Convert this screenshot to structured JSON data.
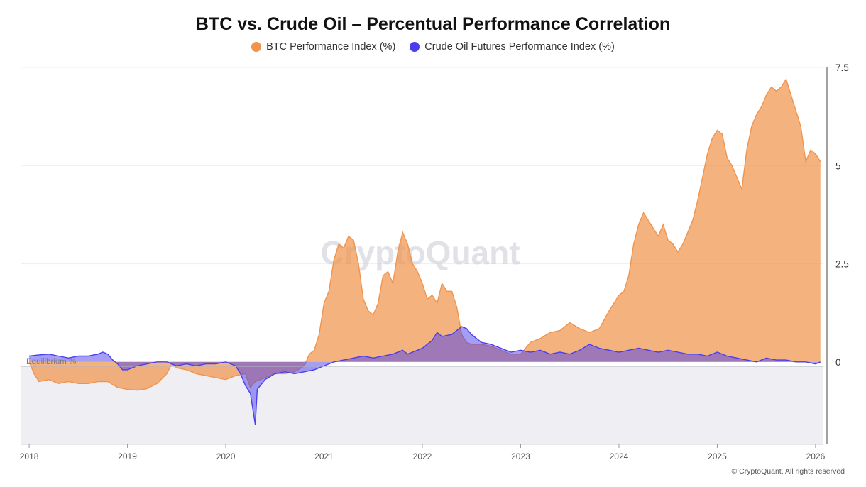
{
  "chart_data": {
    "type": "area",
    "title": "BTC vs. Crude Oil – Percentual Performance Correlation",
    "series": [
      {
        "name": "BTC Performance Index (%)",
        "color": "#f0944d",
        "points": [
          [
            2018.0,
            0
          ],
          [
            2018.05,
            -0.3
          ],
          [
            2018.1,
            -0.5
          ],
          [
            2018.2,
            -0.45
          ],
          [
            2018.3,
            -0.55
          ],
          [
            2018.4,
            -0.5
          ],
          [
            2018.5,
            -0.55
          ],
          [
            2018.6,
            -0.55
          ],
          [
            2018.7,
            -0.5
          ],
          [
            2018.8,
            -0.5
          ],
          [
            2018.9,
            -0.65
          ],
          [
            2019.0,
            -0.7
          ],
          [
            2019.1,
            -0.72
          ],
          [
            2019.2,
            -0.68
          ],
          [
            2019.3,
            -0.55
          ],
          [
            2019.4,
            -0.3
          ],
          [
            2019.45,
            -0.05
          ],
          [
            2019.5,
            -0.15
          ],
          [
            2019.6,
            -0.2
          ],
          [
            2019.7,
            -0.3
          ],
          [
            2019.8,
            -0.35
          ],
          [
            2019.9,
            -0.4
          ],
          [
            2020.0,
            -0.45
          ],
          [
            2020.1,
            -0.35
          ],
          [
            2020.2,
            -0.3
          ],
          [
            2020.25,
            -0.65
          ],
          [
            2020.3,
            -0.5
          ],
          [
            2020.4,
            -0.4
          ],
          [
            2020.5,
            -0.3
          ],
          [
            2020.6,
            -0.3
          ],
          [
            2020.7,
            -0.25
          ],
          [
            2020.8,
            -0.1
          ],
          [
            2020.85,
            0.2
          ],
          [
            2020.9,
            0.3
          ],
          [
            2020.95,
            0.7
          ],
          [
            2021.0,
            1.5
          ],
          [
            2021.05,
            1.8
          ],
          [
            2021.1,
            2.6
          ],
          [
            2021.15,
            3.0
          ],
          [
            2021.2,
            2.9
          ],
          [
            2021.25,
            3.2
          ],
          [
            2021.3,
            3.1
          ],
          [
            2021.35,
            2.5
          ],
          [
            2021.4,
            1.6
          ],
          [
            2021.45,
            1.3
          ],
          [
            2021.5,
            1.2
          ],
          [
            2021.55,
            1.5
          ],
          [
            2021.6,
            2.2
          ],
          [
            2021.65,
            2.3
          ],
          [
            2021.7,
            2.0
          ],
          [
            2021.75,
            2.8
          ],
          [
            2021.8,
            3.3
          ],
          [
            2021.85,
            3.0
          ],
          [
            2021.9,
            2.5
          ],
          [
            2021.95,
            2.3
          ],
          [
            2022.0,
            2.0
          ],
          [
            2022.05,
            1.6
          ],
          [
            2022.1,
            1.7
          ],
          [
            2022.15,
            1.5
          ],
          [
            2022.2,
            2.0
          ],
          [
            2022.25,
            1.8
          ],
          [
            2022.3,
            1.8
          ],
          [
            2022.35,
            1.4
          ],
          [
            2022.4,
            0.7
          ],
          [
            2022.45,
            0.5
          ],
          [
            2022.5,
            0.45
          ],
          [
            2022.6,
            0.45
          ],
          [
            2022.7,
            0.4
          ],
          [
            2022.8,
            0.3
          ],
          [
            2022.9,
            0.2
          ],
          [
            2023.0,
            0.2
          ],
          [
            2023.1,
            0.5
          ],
          [
            2023.2,
            0.6
          ],
          [
            2023.3,
            0.75
          ],
          [
            2023.4,
            0.8
          ],
          [
            2023.5,
            1.0
          ],
          [
            2023.6,
            0.85
          ],
          [
            2023.7,
            0.75
          ],
          [
            2023.8,
            0.85
          ],
          [
            2023.9,
            1.3
          ],
          [
            2024.0,
            1.7
          ],
          [
            2024.05,
            1.8
          ],
          [
            2024.1,
            2.2
          ],
          [
            2024.15,
            3.0
          ],
          [
            2024.2,
            3.5
          ],
          [
            2024.25,
            3.8
          ],
          [
            2024.3,
            3.6
          ],
          [
            2024.35,
            3.4
          ],
          [
            2024.4,
            3.2
          ],
          [
            2024.45,
            3.5
          ],
          [
            2024.5,
            3.1
          ],
          [
            2024.55,
            3.0
          ],
          [
            2024.6,
            2.8
          ],
          [
            2024.65,
            3.0
          ],
          [
            2024.7,
            3.3
          ],
          [
            2024.75,
            3.6
          ],
          [
            2024.8,
            4.1
          ],
          [
            2024.85,
            4.7
          ],
          [
            2024.9,
            5.3
          ],
          [
            2024.95,
            5.7
          ],
          [
            2025.0,
            5.9
          ],
          [
            2025.05,
            5.8
          ],
          [
            2025.1,
            5.2
          ],
          [
            2025.15,
            5.0
          ],
          [
            2025.2,
            4.7
          ],
          [
            2025.25,
            4.4
          ],
          [
            2025.3,
            5.4
          ],
          [
            2025.35,
            6.0
          ],
          [
            2025.4,
            6.3
          ],
          [
            2025.45,
            6.5
          ],
          [
            2025.5,
            6.8
          ],
          [
            2025.55,
            7.0
          ],
          [
            2025.6,
            6.9
          ],
          [
            2025.65,
            7.0
          ],
          [
            2025.7,
            7.2
          ],
          [
            2025.75,
            6.8
          ],
          [
            2025.8,
            6.4
          ],
          [
            2025.85,
            6.0
          ],
          [
            2025.9,
            5.1
          ],
          [
            2025.95,
            5.4
          ],
          [
            2026.0,
            5.3
          ],
          [
            2026.05,
            5.1
          ]
        ]
      },
      {
        "name": "Crude Oil Futures Performance Index (%)",
        "color": "#4a3df0",
        "points": [
          [
            2018.0,
            0.15
          ],
          [
            2018.1,
            0.18
          ],
          [
            2018.2,
            0.2
          ],
          [
            2018.3,
            0.15
          ],
          [
            2018.4,
            0.1
          ],
          [
            2018.5,
            0.15
          ],
          [
            2018.6,
            0.15
          ],
          [
            2018.7,
            0.2
          ],
          [
            2018.75,
            0.25
          ],
          [
            2018.8,
            0.2
          ],
          [
            2018.85,
            0.05
          ],
          [
            2018.9,
            -0.05
          ],
          [
            2018.95,
            -0.2
          ],
          [
            2019.0,
            -0.2
          ],
          [
            2019.1,
            -0.1
          ],
          [
            2019.2,
            -0.05
          ],
          [
            2019.3,
            0.0
          ],
          [
            2019.4,
            0.0
          ],
          [
            2019.5,
            -0.1
          ],
          [
            2019.6,
            -0.05
          ],
          [
            2019.7,
            -0.1
          ],
          [
            2019.8,
            -0.05
          ],
          [
            2019.9,
            -0.05
          ],
          [
            2020.0,
            0.0
          ],
          [
            2020.1,
            -0.1
          ],
          [
            2020.15,
            -0.3
          ],
          [
            2020.2,
            -0.6
          ],
          [
            2020.25,
            -0.8
          ],
          [
            2020.3,
            -1.6
          ],
          [
            2020.32,
            -0.7
          ],
          [
            2020.4,
            -0.45
          ],
          [
            2020.5,
            -0.3
          ],
          [
            2020.6,
            -0.25
          ],
          [
            2020.7,
            -0.3
          ],
          [
            2020.8,
            -0.25
          ],
          [
            2020.9,
            -0.2
          ],
          [
            2021.0,
            -0.1
          ],
          [
            2021.1,
            0.0
          ],
          [
            2021.2,
            0.05
          ],
          [
            2021.3,
            0.1
          ],
          [
            2021.4,
            0.15
          ],
          [
            2021.5,
            0.1
          ],
          [
            2021.6,
            0.15
          ],
          [
            2021.7,
            0.2
          ],
          [
            2021.8,
            0.3
          ],
          [
            2021.85,
            0.2
          ],
          [
            2021.9,
            0.25
          ],
          [
            2022.0,
            0.35
          ],
          [
            2022.1,
            0.55
          ],
          [
            2022.15,
            0.75
          ],
          [
            2022.2,
            0.65
          ],
          [
            2022.3,
            0.7
          ],
          [
            2022.4,
            0.9
          ],
          [
            2022.45,
            0.85
          ],
          [
            2022.5,
            0.7
          ],
          [
            2022.55,
            0.6
          ],
          [
            2022.6,
            0.5
          ],
          [
            2022.7,
            0.45
          ],
          [
            2022.8,
            0.35
          ],
          [
            2022.9,
            0.25
          ],
          [
            2023.0,
            0.3
          ],
          [
            2023.1,
            0.25
          ],
          [
            2023.2,
            0.3
          ],
          [
            2023.3,
            0.2
          ],
          [
            2023.4,
            0.25
          ],
          [
            2023.5,
            0.2
          ],
          [
            2023.6,
            0.3
          ],
          [
            2023.7,
            0.45
          ],
          [
            2023.8,
            0.35
          ],
          [
            2023.9,
            0.3
          ],
          [
            2024.0,
            0.25
          ],
          [
            2024.1,
            0.3
          ],
          [
            2024.2,
            0.35
          ],
          [
            2024.3,
            0.3
          ],
          [
            2024.4,
            0.25
          ],
          [
            2024.5,
            0.3
          ],
          [
            2024.6,
            0.25
          ],
          [
            2024.7,
            0.2
          ],
          [
            2024.8,
            0.2
          ],
          [
            2024.9,
            0.15
          ],
          [
            2025.0,
            0.25
          ],
          [
            2025.1,
            0.15
          ],
          [
            2025.2,
            0.1
          ],
          [
            2025.3,
            0.05
          ],
          [
            2025.4,
            0.0
          ],
          [
            2025.5,
            0.1
          ],
          [
            2025.6,
            0.05
          ],
          [
            2025.7,
            0.05
          ],
          [
            2025.8,
            0.0
          ],
          [
            2025.9,
            0.0
          ],
          [
            2026.0,
            -0.05
          ],
          [
            2026.05,
            0.0
          ]
        ]
      }
    ],
    "xlim": [
      2017.92,
      2026.08
    ],
    "ylim": [
      -2.1,
      7.5
    ],
    "x_ticks": [
      "2018",
      "2019",
      "2020",
      "2021",
      "2022",
      "2023",
      "2024",
      "2025",
      "2026"
    ],
    "x_tick_values": [
      2018,
      2019,
      2020,
      2021,
      2022,
      2023,
      2024,
      2025,
      2026
    ],
    "y_ticks": [
      "0",
      "2.5",
      "5",
      "7.5"
    ],
    "y_tick_values": [
      0,
      2.5,
      5,
      7.5
    ],
    "grid": true,
    "legend_position": "top-center",
    "annotation": "Equilibrium %",
    "watermark": "CryptoQuant",
    "credit": "© CryptoQuant. All rights reserved"
  }
}
